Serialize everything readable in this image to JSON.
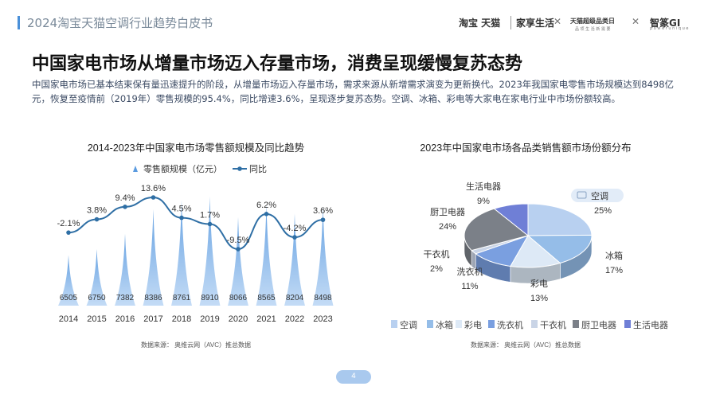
{
  "header": {
    "report_title": "2024淘宝天猫空调行业趋势白皮书",
    "brands": [
      "淘宝 天猫",
      "家享生活",
      "天猫超级品类日",
      "智篆GI"
    ],
    "brand_subtitles": [
      "品 项 生 活 新 需 要",
      "p o w e r   u n i q u e"
    ]
  },
  "headline": "中国家电市场从增量市场迈入存量市场，消费呈现缓慢复苏态势",
  "paragraph": "中国家电市场已基本结束保有量迅速提升的阶段，从增量市场迈入存量市场，需求来源从新增需求演变为更新换代。2023年我国家电零售市场规模达到8498亿元，恢复至疫情前（2019年）零售规模的95.4%，同比增速3.6%，呈现逐步复苏态势。空调、冰箱、彩电等大家电在家电行业中市场份额较高。",
  "colors": {
    "accent": "#4a90d9",
    "bar": "#5b9be0",
    "line": "#2f6fa5",
    "pie": [
      "#b8d0f0",
      "#95bde8",
      "#dde9f6",
      "#7a9fe0",
      "#c9d4e6",
      "#7b8088",
      "#6f7fd6"
    ]
  },
  "footer": {
    "page": "4"
  },
  "chart_data": [
    {
      "type": "bar",
      "title": "2014-2023年中国家电市场零售额规模及同比趋势",
      "categories": [
        "2014",
        "2015",
        "2016",
        "2017",
        "2018",
        "2019",
        "2020",
        "2021",
        "2022",
        "2023"
      ],
      "series": [
        {
          "name": "零售额规模（亿元）",
          "type": "bar",
          "values": [
            6505,
            6750,
            7382,
            8386,
            8761,
            8910,
            8066,
            8565,
            8204,
            8498
          ]
        },
        {
          "name": "同比",
          "type": "line",
          "values": [
            -2.1,
            3.8,
            9.4,
            13.6,
            4.5,
            1.7,
            -9.5,
            6.2,
            -4.2,
            3.6
          ],
          "labels": [
            "-2.1%",
            "3.8%",
            "9.4%",
            "13.6%",
            "4.5%",
            "1.7%",
            "-9.5%",
            "6.2%",
            "-4.2%",
            "3.6%"
          ]
        }
      ],
      "legend": "top-left",
      "source": "数据来源：  奥维云网（AVC）推总数据"
    },
    {
      "type": "pie",
      "title": "2023年中国家电市场各品类销售额市场份额分布",
      "categories": [
        "空调",
        "冰箱",
        "彩电",
        "洗衣机",
        "干衣机",
        "厨卫电器",
        "生活电器"
      ],
      "values": [
        25,
        17,
        13,
        11,
        2,
        24,
        9
      ],
      "labels": [
        "25%",
        "17%",
        "13%",
        "11%",
        "2%",
        "24%",
        "9%"
      ],
      "legend": "bottom",
      "source": "数据来源：  奥维云网（AVC）推总数据"
    }
  ]
}
